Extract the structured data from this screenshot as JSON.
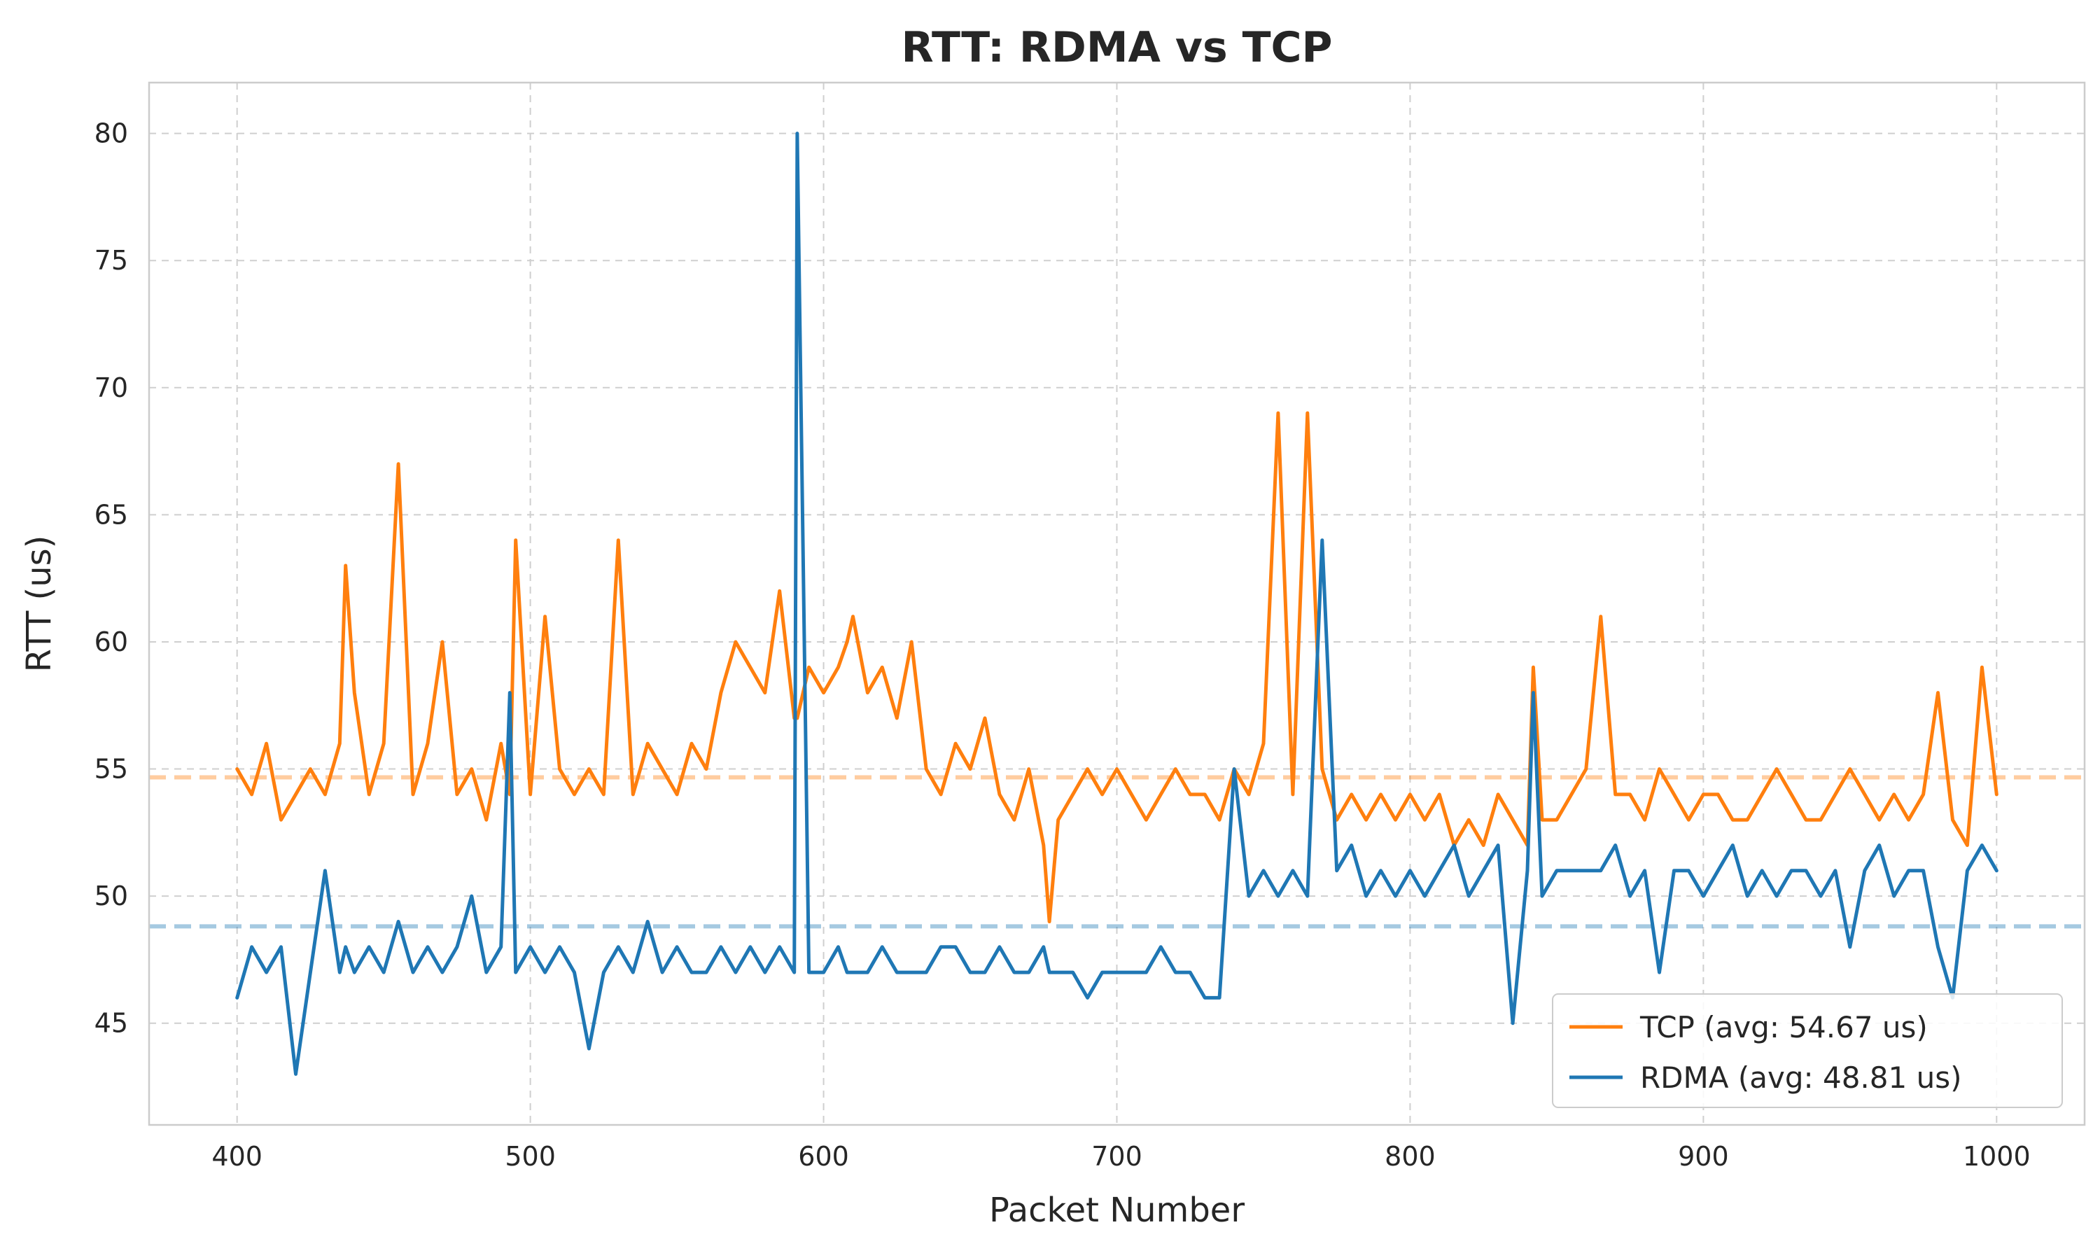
{
  "chart_data": {
    "type": "line",
    "title": "RTT: RDMA vs TCP",
    "xlabel": "Packet Number",
    "ylabel": "RTT (us)",
    "xlim": [
      370,
      1030
    ],
    "ylim": [
      41,
      82
    ],
    "x_ticks": [
      400,
      500,
      600,
      700,
      800,
      900,
      1000
    ],
    "y_ticks": [
      45,
      50,
      55,
      60,
      65,
      70,
      75,
      80
    ],
    "grid": true,
    "legend_position": "lower-right",
    "x": [
      400,
      405,
      410,
      415,
      420,
      425,
      430,
      435,
      437,
      440,
      445,
      450,
      455,
      460,
      465,
      470,
      475,
      480,
      485,
      490,
      493,
      495,
      500,
      505,
      510,
      515,
      520,
      525,
      530,
      535,
      540,
      545,
      550,
      555,
      560,
      565,
      570,
      575,
      580,
      585,
      590,
      591,
      595,
      600,
      605,
      608,
      610,
      615,
      620,
      625,
      630,
      635,
      640,
      645,
      650,
      655,
      660,
      665,
      670,
      675,
      677,
      680,
      685,
      690,
      695,
      700,
      705,
      710,
      715,
      720,
      725,
      730,
      735,
      740,
      745,
      750,
      755,
      760,
      765,
      770,
      775,
      780,
      785,
      790,
      795,
      800,
      805,
      810,
      815,
      820,
      825,
      830,
      835,
      840,
      842,
      845,
      850,
      855,
      860,
      865,
      870,
      875,
      880,
      885,
      890,
      895,
      900,
      905,
      910,
      915,
      920,
      925,
      930,
      935,
      940,
      945,
      950,
      955,
      960,
      965,
      970,
      975,
      980,
      985,
      990,
      995,
      1000
    ],
    "series": [
      {
        "name": "TCP (avg: 54.67 us)",
        "color": "#ff7f0e",
        "average": 54.67,
        "values": [
          55,
          54,
          56,
          53,
          54,
          55,
          54,
          56,
          63,
          58,
          54,
          56,
          67,
          54,
          56,
          60,
          54,
          55,
          53,
          56,
          54,
          64,
          54,
          61,
          55,
          54,
          55,
          54,
          64,
          54,
          56,
          55,
          54,
          56,
          55,
          58,
          60,
          59,
          58,
          62,
          57,
          57,
          59,
          58,
          59,
          60,
          61,
          58,
          59,
          57,
          60,
          55,
          54,
          56,
          55,
          57,
          54,
          53,
          55,
          52,
          49,
          53,
          54,
          55,
          54,
          55,
          54,
          53,
          54,
          55,
          54,
          54,
          53,
          55,
          54,
          56,
          69,
          54,
          69,
          55,
          53,
          54,
          53,
          54,
          53,
          54,
          53,
          54,
          52,
          53,
          52,
          54,
          53,
          52,
          59,
          53,
          53,
          54,
          55,
          61,
          54,
          54,
          53,
          55,
          54,
          53,
          54,
          54,
          53,
          53,
          54,
          55,
          54,
          53,
          53,
          54,
          55,
          54,
          53,
          54,
          53,
          54,
          58,
          53,
          52,
          59,
          54
        ],
        "line_width": 5
      },
      {
        "name": "RDMA (avg: 48.81 us)",
        "color": "#1f77b4",
        "average": 48.81,
        "values": [
          46,
          48,
          47,
          48,
          43,
          47,
          51,
          47,
          48,
          47,
          48,
          47,
          49,
          47,
          48,
          47,
          48,
          50,
          47,
          48,
          58,
          47,
          48,
          47,
          48,
          47,
          44,
          47,
          48,
          47,
          49,
          47,
          48,
          47,
          47,
          48,
          47,
          48,
          47,
          48,
          47,
          80,
          47,
          47,
          48,
          47,
          47,
          47,
          48,
          47,
          47,
          47,
          48,
          48,
          47,
          47,
          48,
          47,
          47,
          48,
          47,
          47,
          47,
          46,
          47,
          47,
          47,
          47,
          48,
          47,
          47,
          46,
          46,
          55,
          50,
          51,
          50,
          51,
          50,
          64,
          51,
          52,
          50,
          51,
          50,
          51,
          50,
          51,
          52,
          50,
          51,
          52,
          45,
          51,
          58,
          50,
          51,
          51,
          51,
          51,
          52,
          50,
          51,
          47,
          51,
          51,
          50,
          51,
          52,
          50,
          51,
          50,
          51,
          51,
          50,
          51,
          48,
          51,
          52,
          50,
          51,
          51,
          48,
          46,
          51,
          52,
          51
        ],
        "line_width": 5
      }
    ]
  }
}
